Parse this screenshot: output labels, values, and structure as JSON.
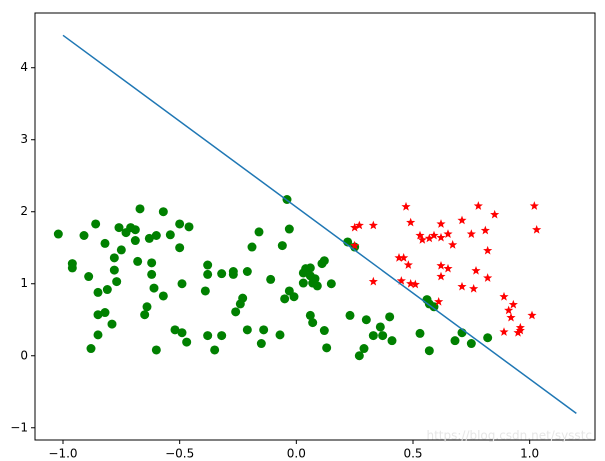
{
  "chart_data": {
    "type": "scatter",
    "xlim": [
      -1.12,
      1.28
    ],
    "ylim": [
      -1.17,
      4.76
    ],
    "xticks": [
      {
        "value": -1.0,
        "label": "−1.0"
      },
      {
        "value": -0.5,
        "label": "−0.5"
      },
      {
        "value": 0.0,
        "label": "0.0"
      },
      {
        "value": 0.5,
        "label": "0.5"
      },
      {
        "value": 1.0,
        "label": "1.0"
      }
    ],
    "yticks": [
      {
        "value": -1,
        "label": "−1"
      },
      0,
      1,
      2,
      3,
      4
    ],
    "grid": false,
    "watermark": "https://blog.csdn.net/sysstc",
    "series": [
      {
        "marker": "circle",
        "color": "#008000",
        "x": [
          -1.02,
          -0.96,
          -0.96,
          -0.91,
          -0.86,
          -0.89,
          -0.82,
          -0.85,
          -0.81,
          -0.85,
          -0.82,
          -0.85,
          -0.88,
          -0.79,
          -0.78,
          -0.78,
          -0.76,
          -0.75,
          -0.77,
          -0.73,
          -0.71,
          -0.69,
          -0.69,
          -0.67,
          -0.68,
          -0.65,
          -0.64,
          -0.62,
          -0.63,
          -0.62,
          -0.6,
          -0.61,
          -0.57,
          -0.57,
          -0.6,
          -0.54,
          -0.5,
          -0.46,
          -0.5,
          -0.49,
          -0.52,
          -0.49,
          -0.47,
          -0.38,
          -0.38,
          -0.39,
          -0.38,
          -0.35,
          -0.32,
          -0.32,
          -0.27,
          -0.27,
          -0.21,
          -0.26,
          -0.24,
          -0.23,
          -0.21,
          -0.19,
          -0.16,
          -0.14,
          -0.15,
          -0.11,
          -0.07,
          -0.06,
          -0.04,
          -0.03,
          -0.05,
          -0.03,
          -0.01,
          0.03,
          0.04,
          0.06,
          0.06,
          0.03,
          0.07,
          0.06,
          0.07,
          0.08,
          0.09,
          0.11,
          0.12,
          0.12,
          0.13,
          0.15,
          0.22,
          0.25,
          0.23,
          0.27,
          0.29,
          0.3,
          0.33,
          0.36,
          0.37,
          0.4,
          0.41,
          0.53,
          0.56,
          0.57,
          0.59,
          0.57,
          0.71,
          0.68,
          0.75,
          0.82
        ],
        "values": [
          1.69,
          1.28,
          1.22,
          1.67,
          1.83,
          1.1,
          1.56,
          0.88,
          0.92,
          0.57,
          0.6,
          0.29,
          0.1,
          0.44,
          1.36,
          1.19,
          1.78,
          1.47,
          1.03,
          1.71,
          1.78,
          1.6,
          1.75,
          2.04,
          1.31,
          0.57,
          0.68,
          1.29,
          1.63,
          1.13,
          1.67,
          0.94,
          2.0,
          0.83,
          0.08,
          1.68,
          1.83,
          1.79,
          1.5,
          1.0,
          0.36,
          0.32,
          0.19,
          1.26,
          1.13,
          0.9,
          0.28,
          0.08,
          1.14,
          0.28,
          1.13,
          1.17,
          1.17,
          0.61,
          0.72,
          0.8,
          0.36,
          1.51,
          1.72,
          0.36,
          0.17,
          1.06,
          0.29,
          1.53,
          2.17,
          1.76,
          0.79,
          0.9,
          0.82,
          1.15,
          1.21,
          1.11,
          1.22,
          1.01,
          1.01,
          0.56,
          0.46,
          1.07,
          0.97,
          1.28,
          1.32,
          0.35,
          0.11,
          1.0,
          1.58,
          1.51,
          0.56,
          0.0,
          0.1,
          0.5,
          0.28,
          0.4,
          0.28,
          0.54,
          0.21,
          0.31,
          0.78,
          0.72,
          0.68,
          0.07,
          0.32,
          0.21,
          0.17,
          0.25
        ]
      },
      {
        "marker": "star",
        "color": "#ff0000",
        "x": [
          0.25,
          0.27,
          0.25,
          0.33,
          0.33,
          0.47,
          0.49,
          0.44,
          0.46,
          0.48,
          0.45,
          0.49,
          0.51,
          0.53,
          0.54,
          0.57,
          0.59,
          0.62,
          0.62,
          0.65,
          0.67,
          0.62,
          0.65,
          0.62,
          0.61,
          0.71,
          0.75,
          0.78,
          0.81,
          0.82,
          0.77,
          0.71,
          0.76,
          0.85,
          0.82,
          0.89,
          0.91,
          0.93,
          0.92,
          0.89,
          0.95,
          0.96,
          1.02,
          1.03,
          1.01,
          0.96
        ],
        "values": [
          1.78,
          1.81,
          1.53,
          1.81,
          1.03,
          2.07,
          1.85,
          1.36,
          1.36,
          1.26,
          1.04,
          1.0,
          0.99,
          1.67,
          1.61,
          1.63,
          1.67,
          1.83,
          1.64,
          1.69,
          1.54,
          1.25,
          1.21,
          1.1,
          0.75,
          1.88,
          1.69,
          2.08,
          1.74,
          1.46,
          1.18,
          0.96,
          0.93,
          1.96,
          1.08,
          0.82,
          0.63,
          0.71,
          0.53,
          0.33,
          0.32,
          0.39,
          2.08,
          1.75,
          0.56,
          0.35
        ]
      },
      {
        "marker": "line",
        "color": "#1f77b4",
        "x": [
          -1.0,
          1.2
        ],
        "values": [
          4.45,
          -0.8
        ]
      }
    ]
  }
}
